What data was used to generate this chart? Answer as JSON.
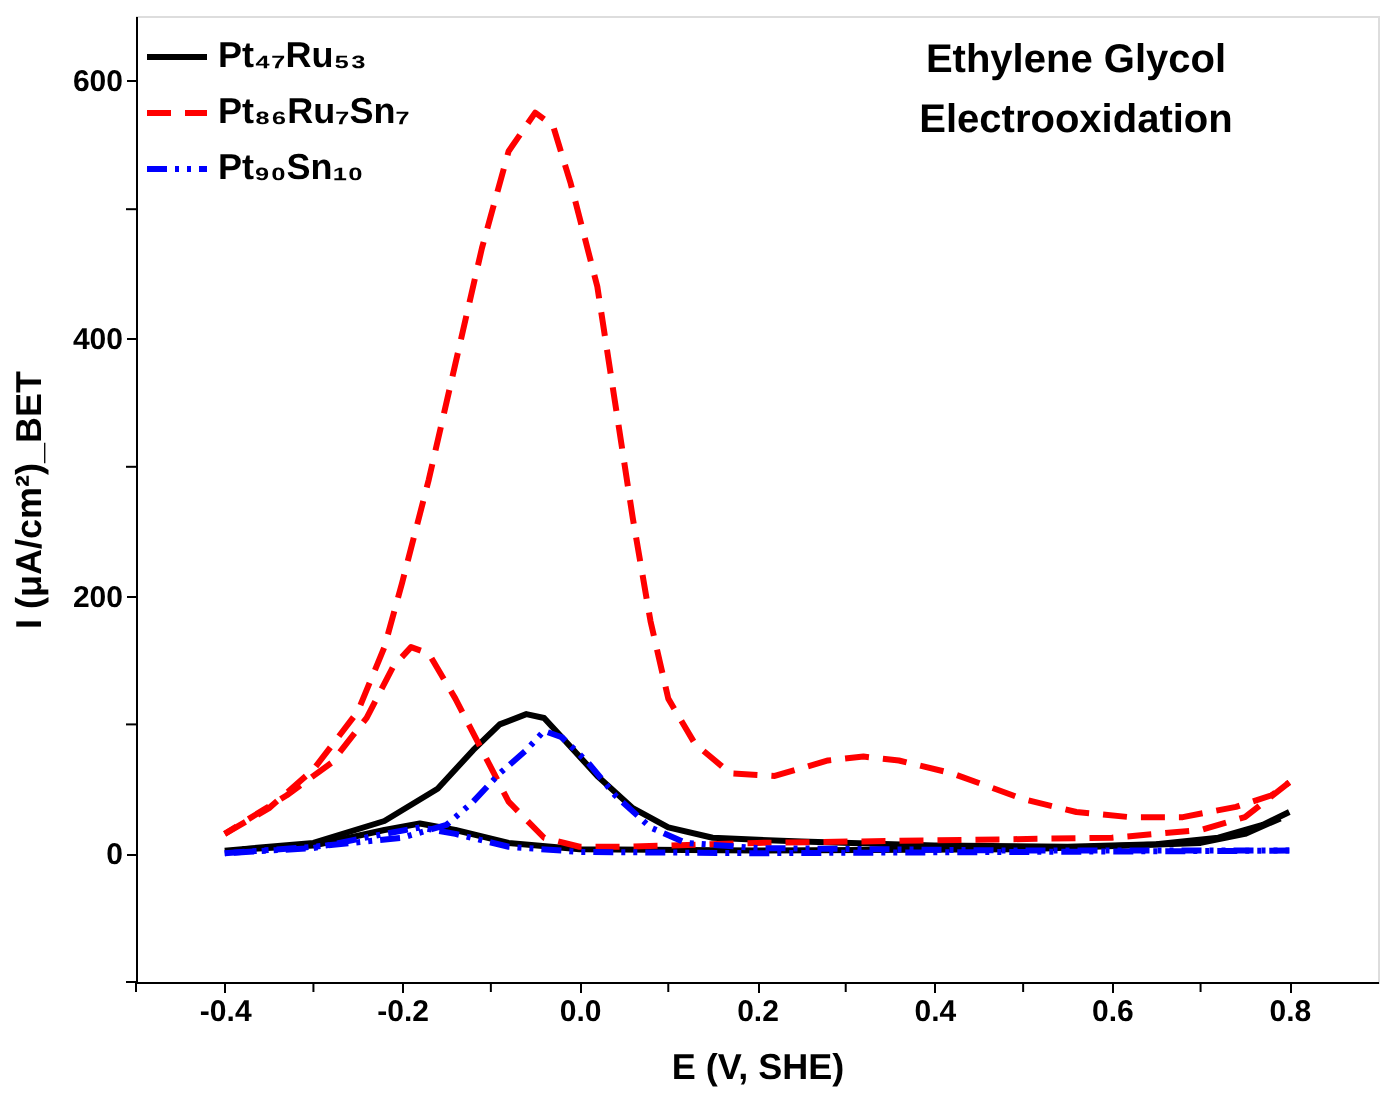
{
  "chart_data": {
    "type": "line",
    "title": "Ethylene Glycol\nElectrooxidation",
    "xlabel": "E (V, SHE)",
    "ylabel": "I (μA/cm²)_BET",
    "xlim": [
      -0.5,
      0.9
    ],
    "ylim": [
      -100,
      650
    ],
    "xticks": [
      {
        "value": -0.5,
        "label": null
      },
      -0.4,
      {
        "value": -0.3,
        "label": null
      },
      -0.2,
      {
        "value": -0.1,
        "label": null
      },
      {
        "value": 0,
        "label": "0.0"
      },
      {
        "value": 0.1,
        "label": null
      },
      0.2,
      {
        "value": 0.3,
        "label": null
      },
      0.4,
      {
        "value": 0.5,
        "label": null
      },
      0.6,
      {
        "value": 0.7,
        "label": null
      },
      0.8
    ],
    "yticks": [
      {
        "value": -100,
        "label": null
      },
      0,
      {
        "value": 100,
        "label": null
      },
      200,
      {
        "value": 300,
        "label": null
      },
      400,
      {
        "value": 500,
        "label": null
      },
      600
    ],
    "grid": false,
    "legend": "top left",
    "marker": "none",
    "series": [
      {
        "name": "Pt₄₇Ru₅₃",
        "color": "#000000",
        "line_style": "solid",
        "x": [
          -0.4,
          -0.3,
          -0.22,
          -0.16,
          -0.12,
          -0.09,
          -0.06,
          -0.04,
          -0.02,
          0.02,
          0.06,
          0.1,
          0.15,
          0.25,
          0.4,
          0.55,
          0.65,
          0.72,
          0.77,
          0.8
        ],
        "values": [
          2,
          8,
          25,
          50,
          80,
          100,
          108,
          105,
          90,
          60,
          35,
          20,
          12,
          9,
          6,
          5,
          7,
          12,
          22,
          32
        ]
      },
      {
        "color": "#000000",
        "line_style": "solid",
        "x": [
          0.79,
          0.75,
          0.7,
          0.5,
          0.2,
          0.0,
          -0.08,
          -0.14,
          -0.18,
          -0.22,
          -0.3,
          -0.38
        ],
        "values": [
          27,
          15,
          8,
          3,
          2,
          3,
          8,
          18,
          23,
          18,
          6,
          3
        ]
      },
      {
        "name": "Pt₈₆Ru₇Sn₇",
        "color": "#ff0000",
        "line_style": "dashed",
        "x": [
          -0.4,
          -0.35,
          -0.3,
          -0.25,
          -0.22,
          -0.2,
          -0.17,
          -0.14,
          -0.11,
          -0.08,
          -0.05,
          -0.03,
          -0.01,
          0.02,
          0.04,
          0.06,
          0.08,
          0.1,
          0.13,
          0.17,
          0.22,
          0.28,
          0.32,
          0.36,
          0.42,
          0.5,
          0.56,
          0.62,
          0.68,
          0.74,
          0.78,
          0.8
        ],
        "values": [
          15,
          35,
          65,
          110,
          160,
          210,
          290,
          380,
          470,
          545,
          575,
          565,
          520,
          440,
          350,
          260,
          180,
          120,
          85,
          62,
          60,
          72,
          75,
          72,
          62,
          42,
          32,
          28,
          28,
          36,
          45,
          55
        ]
      },
      {
        "color": "#ff0000",
        "line_style": "dashed",
        "x": [
          0.8,
          0.75,
          0.7,
          0.6,
          0.4,
          0.2,
          0.05,
          0.0,
          -0.04,
          -0.08,
          -0.11,
          -0.14,
          -0.17,
          -0.19,
          -0.21,
          -0.24,
          -0.28,
          -0.33,
          -0.4
        ],
        "values": [
          55,
          28,
          18,
          12,
          10,
          8,
          5,
          5,
          12,
          40,
          80,
          120,
          155,
          160,
          145,
          105,
          70,
          45,
          15
        ]
      },
      {
        "name": "Pt₉₀Sn₁₀",
        "color": "#0000ff",
        "line_style": "dashdot",
        "x": [
          -0.4,
          -0.3,
          -0.2,
          -0.15,
          -0.12,
          -0.09,
          -0.06,
          -0.04,
          -0.02,
          0.01,
          0.04,
          0.08,
          0.12,
          0.2,
          0.5,
          0.8
        ],
        "values": [
          0,
          5,
          12,
          22,
          40,
          62,
          80,
          95,
          90,
          70,
          45,
          20,
          8,
          4,
          2,
          2
        ]
      },
      {
        "color": "#0000ff",
        "line_style": "dashdot",
        "x": [
          0.8,
          0.5,
          0.2,
          0.0,
          -0.08,
          -0.14,
          -0.18,
          -0.22,
          -0.3,
          -0.4
        ],
        "values": [
          2,
          1,
          0,
          1,
          5,
          15,
          20,
          15,
          4,
          0
        ]
      }
    ]
  }
}
